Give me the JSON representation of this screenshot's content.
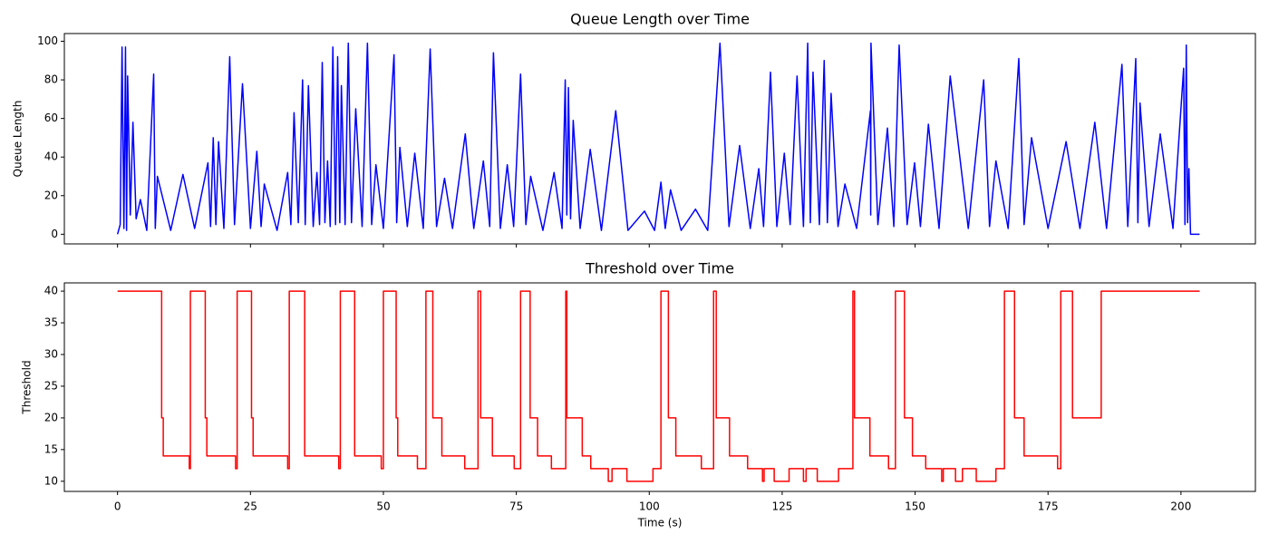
{
  "chart_data": [
    {
      "type": "line",
      "title": "Queue Length over Time",
      "ylabel": "Queue Length",
      "color": "#0000ff",
      "xlim": [
        -10,
        214
      ],
      "xticks": [
        0,
        25,
        50,
        75,
        100,
        125,
        150,
        175,
        200
      ],
      "ylim": [
        -5,
        104
      ],
      "yticks": [
        0,
        20,
        40,
        60,
        80,
        100
      ],
      "x": [
        0,
        0.5,
        0.85,
        1.2,
        1.5,
        1.7,
        1.9,
        2.4,
        2.9,
        3.5,
        4.3,
        5.5,
        6.8,
        7.1,
        7.5,
        10,
        12.3,
        14.5,
        17,
        17.5,
        18,
        18.5,
        19,
        20,
        21.1,
        22,
        23.5,
        25,
        26.2,
        27,
        27.6,
        30,
        32,
        32.6,
        33.2,
        34,
        34.8,
        35.3,
        35.9,
        36.8,
        37.5,
        38,
        38.5,
        39,
        39.5,
        40,
        40.5,
        41,
        41.4,
        41.8,
        42.1,
        42.8,
        43.4,
        44,
        44.8,
        46,
        47,
        47.8,
        48.6,
        50,
        52,
        52.5,
        53.1,
        54.5,
        55.9,
        57.5,
        58.8,
        60,
        61.5,
        63,
        65.4,
        67,
        68.8,
        70,
        70.7,
        72,
        73.3,
        74.5,
        75.8,
        76.8,
        77.7,
        80,
        82.1,
        83.6,
        84.2,
        84.5,
        84.8,
        85.2,
        85.7,
        87,
        88.9,
        91,
        93.7,
        96,
        99.1,
        101,
        102.2,
        103,
        104,
        106,
        108.7,
        111,
        113.3,
        115,
        117,
        119,
        120.6,
        121.5,
        122.8,
        124,
        125.4,
        126.5,
        127.8,
        129,
        129.8,
        130.3,
        130.8,
        132,
        132.9,
        133.5,
        134.2,
        135.5,
        136.8,
        139,
        141.6,
        141.65,
        141.7,
        143,
        144.8,
        146,
        147,
        148.5,
        149.9,
        151,
        152.5,
        154.5,
        156.6,
        160,
        162.9,
        164,
        165.2,
        167.5,
        169.5,
        170.5,
        171.9,
        175,
        178.4,
        181,
        183.8,
        186,
        188.9,
        190,
        191.5,
        191.9,
        192.3,
        194,
        196.1,
        198.5,
        200.5,
        200.75,
        201,
        201.25,
        201.5,
        201.8,
        203.5
      ],
      "values": [
        0,
        5,
        97,
        3,
        97,
        2,
        82,
        10,
        58,
        8,
        18,
        2,
        83,
        3,
        30,
        2,
        31,
        3,
        37,
        4,
        50,
        5,
        48,
        3,
        92,
        5,
        78,
        3,
        43,
        4,
        26,
        2,
        32,
        5,
        63,
        6,
        80,
        5,
        77,
        4,
        32,
        5,
        89,
        6,
        38,
        4,
        97,
        5,
        92,
        6,
        77,
        5,
        99,
        6,
        65,
        4,
        99,
        5,
        36,
        3,
        93,
        6,
        45,
        4,
        42,
        3,
        96,
        4,
        29,
        3,
        52,
        3,
        38,
        4,
        94,
        3,
        36,
        4,
        83,
        5,
        30,
        2,
        32,
        3,
        80,
        10,
        76,
        8,
        59,
        3,
        44,
        2,
        64,
        2,
        12,
        2,
        27,
        3,
        23,
        2,
        13,
        2,
        99,
        4,
        46,
        3,
        34,
        4,
        84,
        4,
        42,
        5,
        82,
        4,
        99,
        6,
        84,
        5,
        90,
        6,
        73,
        4,
        26,
        3,
        64,
        10,
        99,
        5,
        55,
        4,
        98,
        5,
        37,
        4,
        57,
        3,
        82,
        3,
        80,
        4,
        38,
        3,
        91,
        5,
        50,
        3,
        48,
        3,
        58,
        3,
        88,
        4,
        91,
        6,
        68,
        4,
        52,
        3,
        86,
        5,
        98,
        6,
        34,
        0,
        0
      ]
    },
    {
      "type": "line",
      "title": "Threshold over Time",
      "ylabel": "Threshold",
      "xlabel": "Time (s)",
      "color": "#ff0000",
      "drawstyle": "steps-post",
      "xlim": [
        -10,
        214
      ],
      "xticks": [
        0,
        25,
        50,
        75,
        100,
        125,
        150,
        175,
        200
      ],
      "ylim": [
        8.4,
        41.3
      ],
      "yticks": [
        10,
        15,
        20,
        25,
        30,
        35,
        40
      ],
      "x": [
        0,
        8.3,
        8.6,
        13.5,
        13.7,
        16.5,
        16.8,
        22.2,
        22.5,
        25.2,
        25.5,
        32,
        32.3,
        35.2,
        41.6,
        41.9,
        44.6,
        49.6,
        50,
        52.4,
        52.7,
        56.4,
        58,
        59.3,
        61,
        65.3,
        67.8,
        68.3,
        70.5,
        74.6,
        75.8,
        77.6,
        79,
        81.6,
        84.3,
        84.5,
        87.4,
        89,
        92.3,
        93,
        95.8,
        100.7,
        102.2,
        103.6,
        105,
        109.8,
        112.1,
        112.6,
        115.1,
        118.5,
        121.3,
        121.6,
        123.5,
        126.3,
        129,
        129.5,
        131.6,
        135.6,
        138.3,
        138.6,
        141.5,
        145,
        146.3,
        148,
        149.5,
        152,
        155,
        155.3,
        157.6,
        158.9,
        161.5,
        165.2,
        166.8,
        168.7,
        170.5,
        176.8,
        177.4,
        179.6,
        185,
        203.5
      ],
      "values": [
        40,
        20,
        14,
        12,
        40,
        20,
        14,
        12,
        40,
        20,
        14,
        12,
        40,
        14,
        12,
        40,
        14,
        12,
        40,
        20,
        14,
        12,
        40,
        20,
        14,
        12,
        40,
        20,
        14,
        12,
        40,
        20,
        14,
        12,
        40,
        20,
        14,
        12,
        10,
        12,
        10,
        12,
        40,
        20,
        14,
        12,
        40,
        20,
        14,
        12,
        10,
        12,
        10,
        12,
        10,
        12,
        10,
        12,
        40,
        20,
        14,
        12,
        40,
        20,
        14,
        12,
        10,
        12,
        10,
        12,
        10,
        12,
        40,
        20,
        14,
        12,
        40,
        20,
        40,
        40
      ]
    }
  ]
}
